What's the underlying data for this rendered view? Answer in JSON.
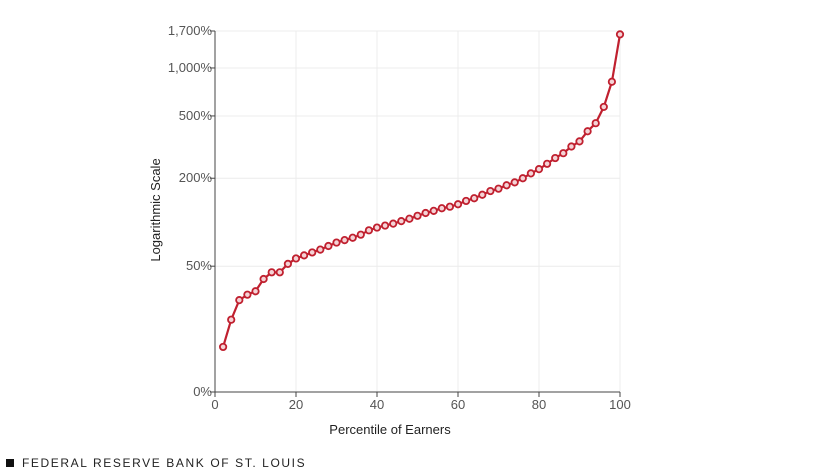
{
  "chart_data": {
    "type": "line",
    "title": "",
    "xlabel": "Percentile of Earners",
    "ylabel": "Logarithmic Scale",
    "xlim": [
      0,
      100
    ],
    "x_ticks": [
      0,
      20,
      40,
      60,
      80,
      100
    ],
    "y_scale": "log",
    "y_ticks": [
      0,
      50,
      200,
      500,
      1000,
      1700
    ],
    "y_tick_labels": [
      "0%",
      "50%",
      "200%",
      "500%",
      "1,000%",
      "1,700%"
    ],
    "grid": true,
    "series_color": "#c0202f",
    "x": [
      2,
      4,
      6,
      8,
      10,
      12,
      14,
      16,
      18,
      20,
      22,
      24,
      26,
      28,
      30,
      32,
      34,
      36,
      38,
      40,
      42,
      44,
      46,
      48,
      50,
      52,
      54,
      56,
      58,
      60,
      62,
      64,
      66,
      68,
      70,
      72,
      74,
      76,
      78,
      80,
      82,
      84,
      86,
      88,
      90,
      92,
      94,
      96,
      98,
      100
    ],
    "y": [
      9,
      18,
      27,
      30,
      32,
      40,
      45,
      45,
      52,
      57,
      60,
      63,
      66,
      70,
      74,
      77,
      80,
      84,
      90,
      94,
      97,
      100,
      104,
      108,
      113,
      118,
      122,
      127,
      130,
      135,
      142,
      148,
      156,
      165,
      171,
      180,
      188,
      200,
      215,
      229,
      248,
      270,
      290,
      320,
      345,
      400,
      450,
      570,
      820,
      1620
    ]
  },
  "footer": {
    "text": "FEDERAL RESERVE BANK OF ST. LOUIS"
  }
}
